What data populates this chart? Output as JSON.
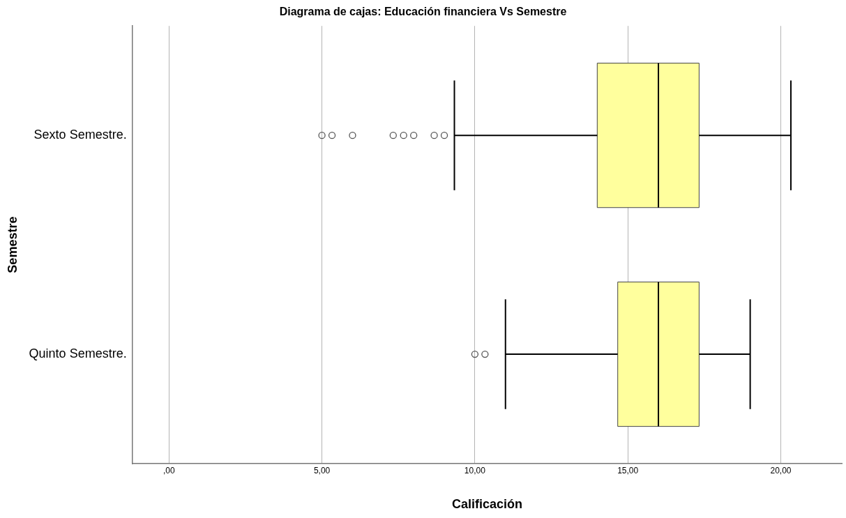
{
  "chart_data": {
    "type": "box",
    "title": "Diagrama de cajas: Educación financiera Vs Semestre",
    "xlabel": "Calificación",
    "ylabel": "Semestre",
    "orientation": "horizontal",
    "categories": [
      "Sexto Semestre.",
      "Quinto Semestre."
    ],
    "color": "#ffff9d",
    "boxes": [
      {
        "low": 9.33,
        "q1": 14,
        "median": 16,
        "q3": 17.33,
        "high": 20.33,
        "outliers": [
          5,
          5.33,
          6,
          7.33,
          7.67,
          8,
          8.67,
          9
        ]
      },
      {
        "low": 11,
        "q1": 14.67,
        "median": 16,
        "q3": 17.33,
        "high": 19,
        "outliers": [
          10,
          10.33
        ]
      }
    ],
    "xlim": [
      -1.2,
      22
    ],
    "xticks": [
      {
        "value": 0,
        "label": ",00"
      },
      {
        "value": 5,
        "label": "5,00"
      },
      {
        "value": 10,
        "label": "10,00"
      },
      {
        "value": 15,
        "label": "15,00"
      },
      {
        "value": 20,
        "label": "20,00"
      }
    ],
    "grid": "x",
    "legend": false
  }
}
